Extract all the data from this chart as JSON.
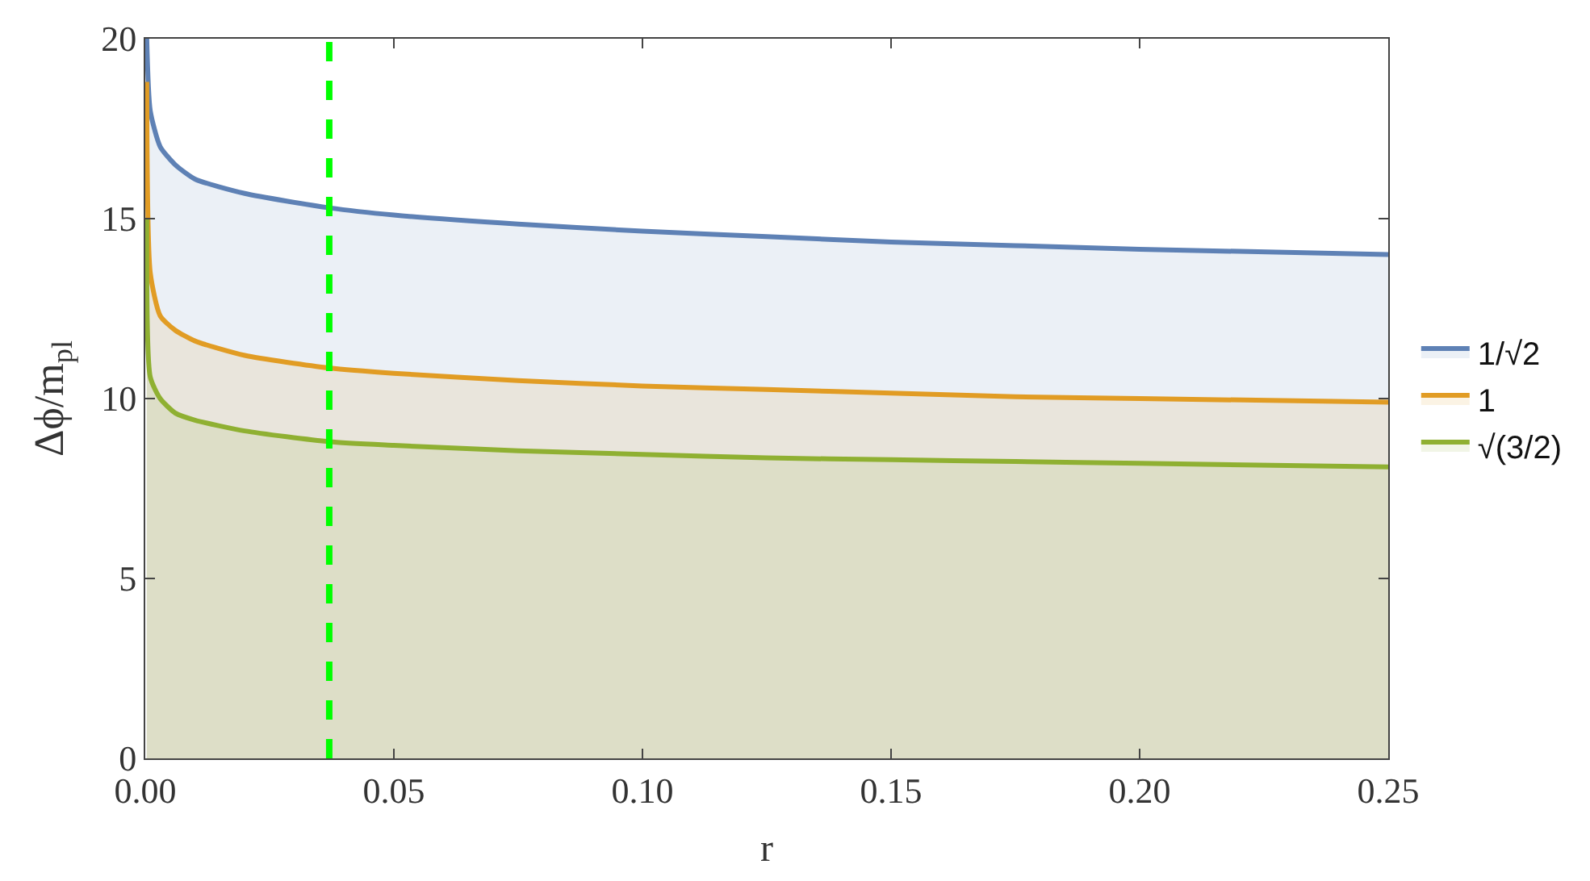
{
  "chart_data": {
    "type": "area",
    "xlabel": "r",
    "ylabel": "Δϕ/m$_{pl}$",
    "xlim": [
      0,
      0.25
    ],
    "xticks": [
      {
        "value": 0,
        "label": "0.00"
      },
      {
        "value": 0.05,
        "label": "0.05"
      },
      {
        "value": 0.1,
        "label": "0.10"
      },
      {
        "value": 0.15,
        "label": "0.15"
      },
      {
        "value": 0.2,
        "label": "0.20"
      },
      {
        "value": 0.25,
        "label": "0.25"
      }
    ],
    "ylim": [
      0,
      20
    ],
    "yticks": [
      0,
      5,
      10,
      15,
      20
    ],
    "legend": "right",
    "x": [
      0.0003,
      0.001,
      0.003,
      0.006,
      0.01,
      0.02,
      0.037,
      0.05,
      0.075,
      0.1,
      0.125,
      0.15,
      0.175,
      0.2,
      0.25
    ],
    "series": [
      {
        "name": "1/√2",
        "color": "#5e81b5",
        "values": [
          20,
          18.0,
          17.0,
          16.5,
          16.1,
          15.7,
          15.3,
          15.1,
          14.85,
          14.65,
          14.5,
          14.35,
          14.25,
          14.15,
          14.0
        ]
      },
      {
        "name": "1",
        "color": "#e19c24",
        "values": [
          18.8,
          13.5,
          12.3,
          11.9,
          11.6,
          11.2,
          10.85,
          10.7,
          10.5,
          10.35,
          10.25,
          10.15,
          10.05,
          10.0,
          9.9
        ]
      },
      {
        "name": "√(3/2)",
        "color": "#8fb032",
        "values": [
          15.0,
          10.6,
          10.0,
          9.6,
          9.4,
          9.1,
          8.8,
          8.7,
          8.55,
          8.45,
          8.35,
          8.3,
          8.25,
          8.2,
          8.1
        ]
      }
    ],
    "ref_lines": [
      {
        "axis": "x",
        "value": 0.037,
        "color": "#00ff00",
        "line_style": "dashed"
      }
    ]
  }
}
